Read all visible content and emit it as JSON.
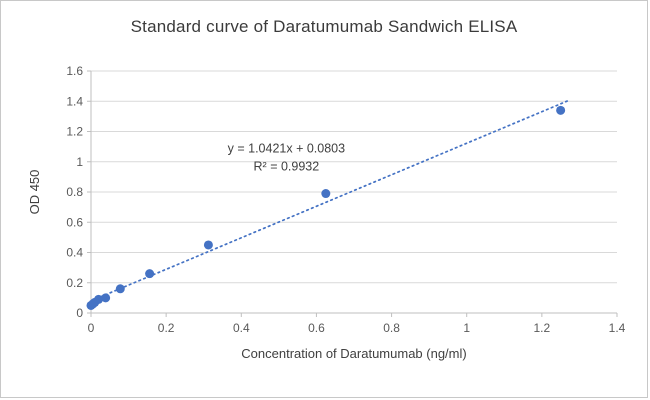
{
  "chart_data": {
    "type": "scatter",
    "title": "Standard curve of Daratumumab Sandwich ELISA",
    "xlabel": "Concentration of Daratumumab (ng/ml)",
    "ylabel": "OD 450",
    "xlim": [
      0,
      1.4
    ],
    "ylim": [
      0,
      1.6
    ],
    "x_ticks": [
      0,
      0.2,
      0.4,
      0.6,
      0.8,
      1,
      1.2,
      1.4
    ],
    "y_ticks": [
      0,
      0.2,
      0.4,
      0.6,
      0.8,
      1,
      1.2,
      1.4,
      1.6
    ],
    "grid": "horizontal",
    "legend": "none",
    "points": [
      {
        "x": 0,
        "y": 0.05
      },
      {
        "x": 0.005,
        "y": 0.06
      },
      {
        "x": 0.01,
        "y": 0.07
      },
      {
        "x": 0.02,
        "y": 0.09
      },
      {
        "x": 0.039,
        "y": 0.1
      },
      {
        "x": 0.078,
        "y": 0.16
      },
      {
        "x": 0.156,
        "y": 0.26
      },
      {
        "x": 0.3125,
        "y": 0.45
      },
      {
        "x": 0.625,
        "y": 0.79
      },
      {
        "x": 1.25,
        "y": 1.34
      }
    ],
    "trendline": {
      "slope": 1.0421,
      "intercept": 0.0803,
      "x_start": 0,
      "x_end": 1.27,
      "style": "dotted"
    },
    "annotation": {
      "line1": "y = 1.0421x + 0.0803",
      "line2": "R² = 0.9932",
      "x": 0.52,
      "y": 1.06
    },
    "colors": {
      "point": "#4472c4",
      "trendline": "#4472c4",
      "grid": "#d9d9d9",
      "axis": "#bfbfbf",
      "tick_text": "#595959",
      "label_text": "#404040",
      "title_text": "#3b3b3b",
      "annotation_text": "#404040"
    }
  }
}
